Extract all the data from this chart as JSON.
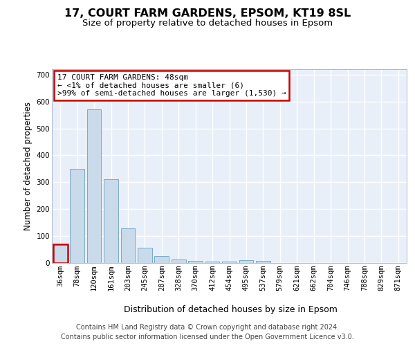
{
  "title": "17, COURT FARM GARDENS, EPSOM, KT19 8SL",
  "subtitle": "Size of property relative to detached houses in Epsom",
  "xlabel": "Distribution of detached houses by size in Epsom",
  "ylabel": "Number of detached properties",
  "bar_color": "#c9daea",
  "bar_edge_color": "#7aaac8",
  "background_color": "#e8eff8",
  "grid_color": "#ffffff",
  "categories": [
    "36sqm",
    "78sqm",
    "120sqm",
    "161sqm",
    "203sqm",
    "245sqm",
    "287sqm",
    "328sqm",
    "370sqm",
    "412sqm",
    "454sqm",
    "495sqm",
    "537sqm",
    "579sqm",
    "621sqm",
    "662sqm",
    "704sqm",
    "746sqm",
    "788sqm",
    "829sqm",
    "871sqm"
  ],
  "values": [
    70,
    350,
    570,
    312,
    128,
    57,
    25,
    13,
    7,
    6,
    5,
    10,
    7,
    0,
    0,
    0,
    0,
    0,
    0,
    0,
    0
  ],
  "ylim": [
    0,
    720
  ],
  "yticks": [
    0,
    100,
    200,
    300,
    400,
    500,
    600,
    700
  ],
  "annotation_text": "17 COURT FARM GARDENS: 48sqm\n← <1% of detached houses are smaller (6)\n>99% of semi-detached houses are larger (1,530) →",
  "annotation_box_color": "#ffffff",
  "annotation_box_edge_color": "#cc0000",
  "highlight_bar_index": 0,
  "highlight_bar_color": "#cc0000",
  "footer_text": "Contains HM Land Registry data © Crown copyright and database right 2024.\nContains public sector information licensed under the Open Government Licence v3.0.",
  "title_fontsize": 11.5,
  "subtitle_fontsize": 9.5,
  "xlabel_fontsize": 9,
  "ylabel_fontsize": 8.5,
  "tick_fontsize": 7.5,
  "annotation_fontsize": 8,
  "footer_fontsize": 7
}
